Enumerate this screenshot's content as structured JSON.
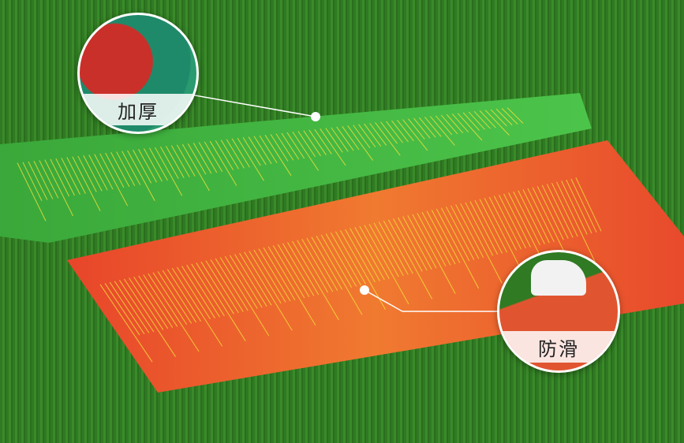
{
  "callouts": [
    {
      "label": "加厚"
    },
    {
      "label": "防滑"
    }
  ],
  "colors": {
    "grass": "#2f7a22",
    "green_mat": "#3fae3a",
    "red_mat": "#e84a2c",
    "ruler_lines": "#f4e23a"
  }
}
